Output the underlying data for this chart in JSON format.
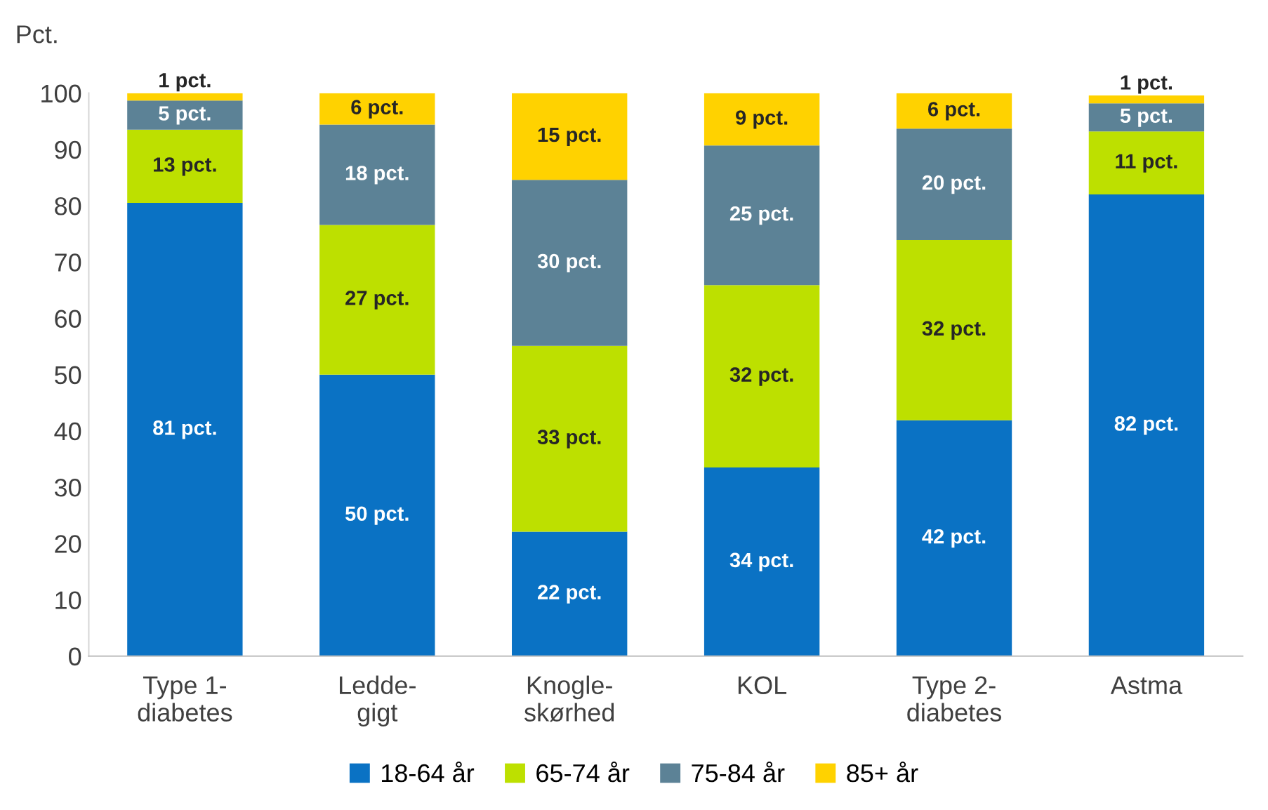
{
  "chart_data": {
    "type": "bar",
    "stacked": true,
    "ylabel": "Pct.",
    "categories": [
      "Type 1-\ndiabetes",
      "Ledde-\ngigt",
      "Knogle-\nskørhed",
      "KOL",
      "Type 2-\ndiabetes",
      "Astma"
    ],
    "series": [
      {
        "name": "18-64 år",
        "color": "#0a72c4",
        "values": [
          80.5,
          50,
          22.1,
          33.5,
          41.9,
          82
        ],
        "value_labels": [
          "81 pct.",
          "50 pct.",
          "22 pct.",
          "34 pct.",
          "42 pct.",
          "82 pct."
        ]
      },
      {
        "name": "65-74 år",
        "color": "#bde000",
        "values": [
          13,
          26.6,
          33,
          32.4,
          32,
          11.2
        ],
        "value_labels": [
          "13 pct.",
          "27 pct.",
          "33 pct.",
          "32 pct.",
          "32 pct.",
          "11 pct."
        ]
      },
      {
        "name": "75-84 år",
        "color": "#5c8296",
        "values": [
          5.2,
          17.8,
          29.5,
          24.8,
          19.8,
          5
        ],
        "value_labels": [
          "5 pct.",
          "18 pct.",
          "30 pct.",
          "25 pct.",
          "20 pct.",
          "5 pct."
        ]
      },
      {
        "name": "85+ år",
        "color": "#ffd200",
        "values": [
          1.3,
          5.6,
          15.4,
          9.3,
          6.3,
          1.4
        ],
        "value_labels": [
          "1 pct.",
          "6 pct.",
          "15 pct.",
          "9 pct.",
          "6 pct.",
          "1 pct."
        ]
      }
    ],
    "ylim": [
      0,
      100
    ],
    "yticks": [
      0,
      10,
      20,
      30,
      40,
      50,
      60,
      70,
      80,
      90,
      100
    ],
    "grid": false,
    "legend": "bottom"
  }
}
